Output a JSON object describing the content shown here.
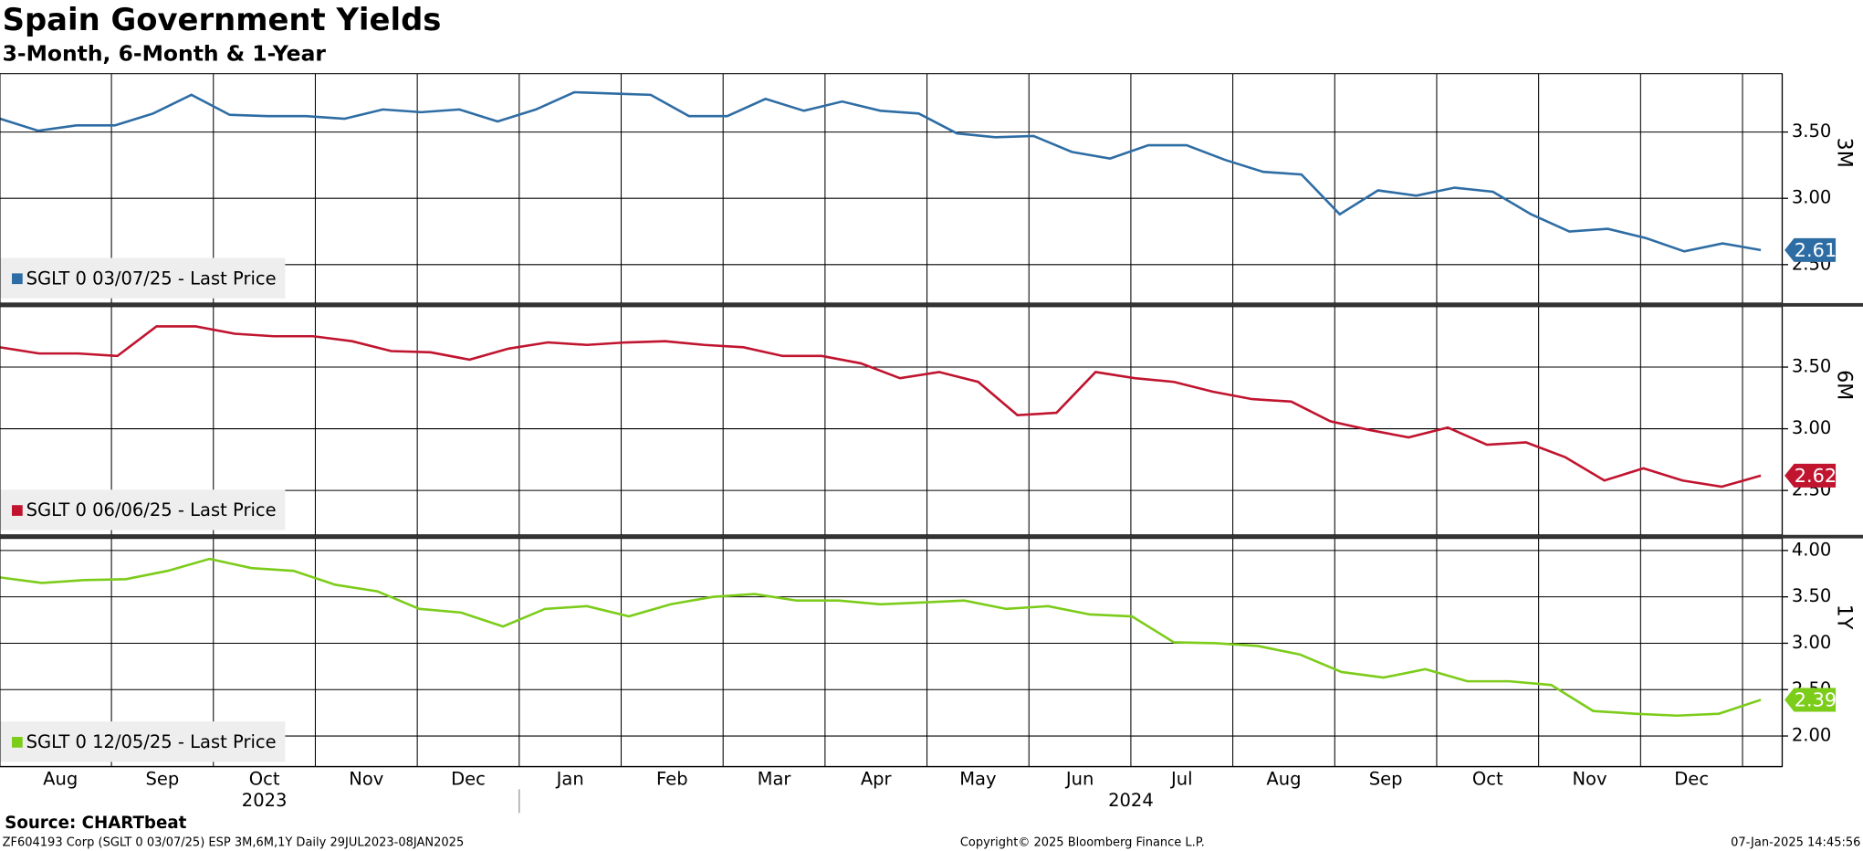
{
  "title": "Spain Government Yields",
  "subtitle": "3-Month, 6-Month & 1-Year",
  "source": "Source: CHARTbeat",
  "footer_left": "ZF604193 Corp (SGLT 0 03/07/25) ESP 3M,6M,1Y  Daily 29JUL2023-08JAN2025",
  "footer_center": "Copyright© 2025 Bloomberg Finance L.P.",
  "footer_right": "07-Jan-2025 14:45:56",
  "x_axis": {
    "categories": [
      "Aug",
      "Sep",
      "Oct",
      "Nov",
      "Dec",
      "Jan",
      "Feb",
      "Mar",
      "Apr",
      "May",
      "Jun",
      "Jul",
      "Aug",
      "Sep",
      "Oct",
      "Nov",
      "Dec"
    ],
    "years": [
      "2023",
      "2024"
    ]
  },
  "chart_data": [
    {
      "type": "line",
      "axis_label": "3M",
      "ylim": [
        2.21,
        3.94
      ],
      "yticks": [
        {
          "value": 2.5,
          "label": "2.50"
        },
        {
          "value": 3,
          "label": "3.00"
        },
        {
          "value": 3.5,
          "label": "3.50"
        }
      ],
      "series": [
        {
          "name": "SGLT 0 03/07/25 - Last Price",
          "color": "#2e6da4",
          "values": [
            3.6,
            3.51,
            3.55,
            3.55,
            3.64,
            3.78,
            3.63,
            3.62,
            3.62,
            3.6,
            3.67,
            3.65,
            3.67,
            3.58,
            3.67,
            3.8,
            3.79,
            3.78,
            3.62,
            3.62,
            3.75,
            3.66,
            3.73,
            3.66,
            3.64,
            3.49,
            3.46,
            3.47,
            3.35,
            3.3,
            3.4,
            3.4,
            3.29,
            3.2,
            3.18,
            2.88,
            3.06,
            3.02,
            3.08,
            3.05,
            2.88,
            2.75,
            2.77,
            2.7,
            2.6,
            2.66,
            2.61
          ]
        }
      ]
    },
    {
      "type": "line",
      "axis_label": "6M",
      "ylim": [
        2.14,
        3.99
      ],
      "yticks": [
        {
          "value": 2.5,
          "label": "2.50"
        },
        {
          "value": 3,
          "label": "3.00"
        },
        {
          "value": 3.5,
          "label": "3.50"
        }
      ],
      "series": [
        {
          "name": "SGLT 0 06/06/25 - Last Price",
          "color": "#c0142f",
          "values": [
            3.66,
            3.61,
            3.61,
            3.59,
            3.83,
            3.83,
            3.77,
            3.75,
            3.75,
            3.71,
            3.63,
            3.62,
            3.56,
            3.65,
            3.7,
            3.68,
            3.7,
            3.71,
            3.68,
            3.66,
            3.59,
            3.59,
            3.53,
            3.41,
            3.46,
            3.38,
            3.11,
            3.13,
            3.46,
            3.41,
            3.38,
            3.3,
            3.24,
            3.22,
            3.06,
            2.99,
            2.93,
            3.01,
            2.87,
            2.89,
            2.77,
            2.58,
            2.68,
            2.58,
            2.53,
            2.62
          ]
        }
      ]
    },
    {
      "type": "line",
      "axis_label": "1Y",
      "ylim": [
        1.67,
        4.13
      ],
      "yticks": [
        {
          "value": 2,
          "label": "2.00"
        },
        {
          "value": 2.5,
          "label": "2.50"
        },
        {
          "value": 3,
          "label": "3.00"
        },
        {
          "value": 3.5,
          "label": "3.50"
        },
        {
          "value": 4,
          "label": "4.00"
        }
      ],
      "series": [
        {
          "name": "SGLT 0 12/05/25 - Last Price",
          "color": "#7ccc1a",
          "values": [
            3.71,
            3.65,
            3.68,
            3.69,
            3.78,
            3.91,
            3.81,
            3.78,
            3.63,
            3.56,
            3.37,
            3.33,
            3.18,
            3.37,
            3.4,
            3.29,
            3.42,
            3.5,
            3.53,
            3.46,
            3.46,
            3.42,
            3.44,
            3.46,
            3.37,
            3.4,
            3.31,
            3.29,
            3.01,
            3.0,
            2.97,
            2.88,
            2.69,
            2.63,
            2.72,
            2.59,
            2.59,
            2.55,
            2.27,
            2.24,
            2.22,
            2.24,
            2.39
          ]
        }
      ]
    }
  ]
}
